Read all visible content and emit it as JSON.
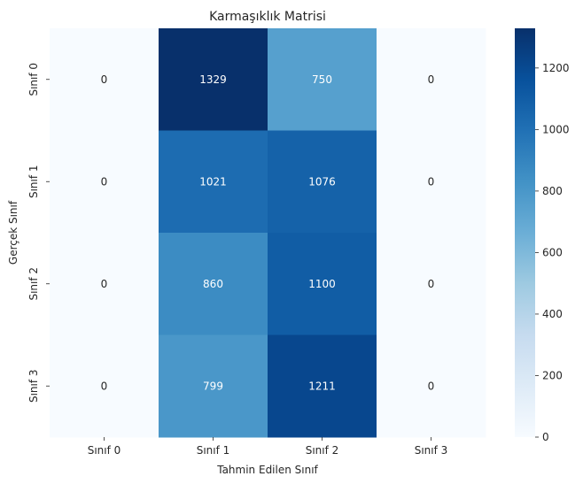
{
  "chart_data": {
    "type": "heatmap",
    "title": "Karmaşıklık Matrisi",
    "xlabel": "Tahmin Edilen Sınıf",
    "ylabel": "Gerçek Sınıf",
    "x_categories": [
      "Sınıf 0",
      "Sınıf 1",
      "Sınıf 2",
      "Sınıf 3"
    ],
    "y_categories": [
      "Sınıf 0",
      "Sınıf 1",
      "Sınıf 2",
      "Sınıf 3"
    ],
    "values": [
      [
        0,
        1329,
        750,
        0
      ],
      [
        0,
        1021,
        1076,
        0
      ],
      [
        0,
        860,
        1100,
        0
      ],
      [
        0,
        799,
        1211,
        0
      ]
    ],
    "colorbar": {
      "range": [
        0,
        1329
      ],
      "ticks": [
        "0",
        "200",
        "400",
        "600",
        "800",
        "1000",
        "1200"
      ],
      "colormap": "Blues"
    }
  }
}
